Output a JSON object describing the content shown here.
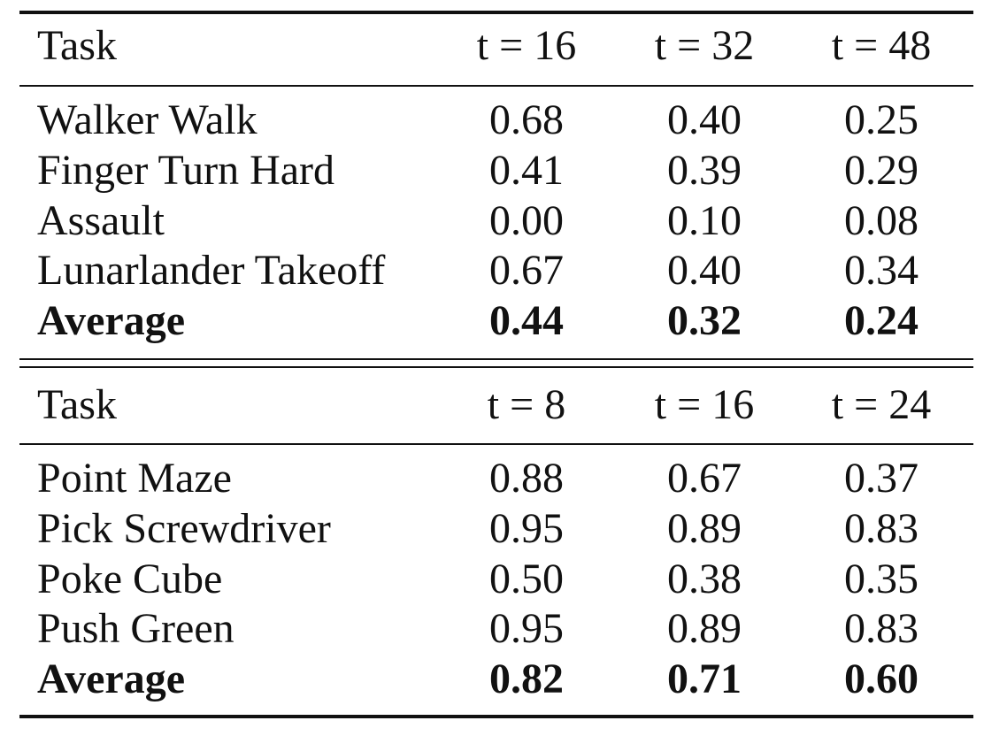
{
  "tables": [
    {
      "header": {
        "task": "Task",
        "columns": [
          "t = 16",
          "t = 32",
          "t = 48"
        ]
      },
      "rows": [
        {
          "task": "Walker Walk",
          "values": [
            "0.68",
            "0.40",
            "0.25"
          ]
        },
        {
          "task": "Finger Turn Hard",
          "values": [
            "0.41",
            "0.39",
            "0.29"
          ]
        },
        {
          "task": "Assault",
          "values": [
            "0.00",
            "0.10",
            "0.08"
          ]
        },
        {
          "task": "Lunarlander Takeoff",
          "values": [
            "0.67",
            "0.40",
            "0.34"
          ]
        }
      ],
      "average": {
        "task": "Average",
        "values": [
          "0.44",
          "0.32",
          "0.24"
        ]
      }
    },
    {
      "header": {
        "task": "Task",
        "columns": [
          "t = 8",
          "t = 16",
          "t = 24"
        ]
      },
      "rows": [
        {
          "task": "Point Maze",
          "values": [
            "0.88",
            "0.67",
            "0.37"
          ]
        },
        {
          "task": "Pick Screwdriver",
          "values": [
            "0.95",
            "0.89",
            "0.83"
          ]
        },
        {
          "task": "Poke Cube",
          "values": [
            "0.50",
            "0.38",
            "0.35"
          ]
        },
        {
          "task": "Push Green",
          "values": [
            "0.95",
            "0.89",
            "0.83"
          ]
        }
      ],
      "average": {
        "task": "Average",
        "values": [
          "0.82",
          "0.71",
          "0.60"
        ]
      }
    }
  ]
}
